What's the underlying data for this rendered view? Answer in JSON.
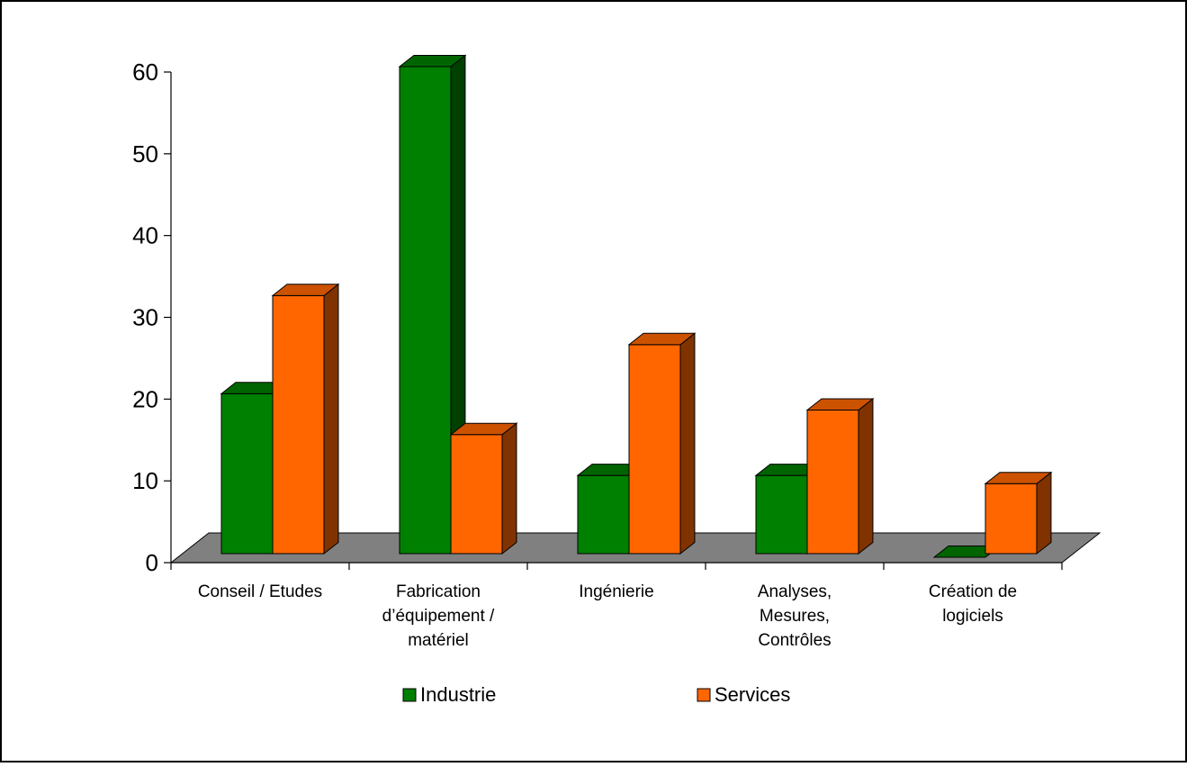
{
  "chart_data": {
    "type": "bar",
    "title": "",
    "xlabel": "",
    "ylabel": "",
    "ylim": [
      0,
      60
    ],
    "yticks": [
      "0",
      "10",
      "20",
      "30",
      "40",
      "50",
      "60"
    ],
    "categories": [
      [
        "Conseil / Etudes"
      ],
      [
        "Fabrication",
        "d’équipement /",
        "matériel"
      ],
      [
        "Ingénierie"
      ],
      [
        "Analyses,",
        "Mesures,",
        "Contrôles"
      ],
      [
        "Création de",
        "logiciels"
      ]
    ],
    "series": [
      {
        "name": "Industrie",
        "values": [
          20,
          60,
          10,
          10,
          0
        ],
        "color": "#008000",
        "top_color": "#006400",
        "side_color": "#004000"
      },
      {
        "name": "Services",
        "values": [
          32,
          15,
          26,
          18,
          9
        ],
        "color": "#ff6600",
        "top_color": "#cc5200",
        "side_color": "#803300"
      }
    ],
    "grid": false,
    "legend_position": "bottom",
    "floor_color": "#808080",
    "three_d": true
  }
}
